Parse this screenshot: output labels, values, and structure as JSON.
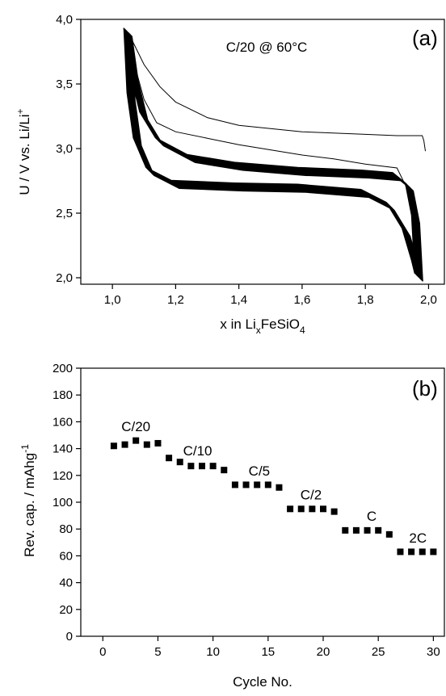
{
  "chart_data": [
    {
      "panel": "(a)",
      "type": "line",
      "annotation": "C/20 @ 60°C",
      "xlabel": "x in LixFeSiO4",
      "xlabel_parts": {
        "main": "x in Li",
        "sub1": "x",
        "mid": "FeSiO",
        "sub2": "4"
      },
      "ylabel": "U / V vs. Li/Li+",
      "ylabel_parts": {
        "main": "U / V vs. Li/Li",
        "sup": "+"
      },
      "xlim": [
        0.9,
        2.05
      ],
      "ylim": [
        1.95,
        4.0
      ],
      "xticks": [
        1.0,
        1.2,
        1.4,
        1.6,
        1.8,
        2.0
      ],
      "xtick_labels": [
        "1,0",
        "1,2",
        "1,4",
        "1,6",
        "1,8",
        "2,0"
      ],
      "yticks": [
        2.0,
        2.5,
        3.0,
        3.5,
        4.0
      ],
      "ytick_labels": [
        "2,0",
        "2,5",
        "3,0",
        "3,5",
        "4,0"
      ],
      "series": [
        {
          "curve": "first-charge",
          "x": [
            1.99,
            1.985,
            1.98,
            1.9,
            1.8,
            1.6,
            1.4,
            1.3,
            1.2,
            1.15,
            1.1,
            1.07,
            1.05
          ],
          "y": [
            2.98,
            3.06,
            3.1,
            3.1,
            3.11,
            3.13,
            3.18,
            3.24,
            3.36,
            3.48,
            3.65,
            3.8,
            3.9
          ]
        },
        {
          "curve": "first-discharge",
          "x": [
            1.05,
            1.07,
            1.1,
            1.14,
            1.2,
            1.3,
            1.4,
            1.5,
            1.6,
            1.7,
            1.8,
            1.9,
            1.95,
            1.97
          ],
          "y": [
            3.9,
            3.65,
            3.38,
            3.2,
            3.13,
            3.08,
            3.03,
            2.99,
            2.95,
            2.92,
            2.88,
            2.85,
            2.6,
            2.0
          ]
        },
        {
          "curve": "cycling-charge",
          "x": [
            1.97,
            1.96,
            1.94,
            1.9,
            1.8,
            1.6,
            1.4,
            1.25,
            1.15,
            1.1,
            1.07,
            1.05
          ],
          "y": [
            2.0,
            2.45,
            2.7,
            2.78,
            2.8,
            2.82,
            2.86,
            2.92,
            3.05,
            3.25,
            3.55,
            3.9
          ]
        },
        {
          "curve": "cycling-discharge",
          "x": [
            1.05,
            1.06,
            1.08,
            1.12,
            1.2,
            1.4,
            1.6,
            1.8,
            1.88,
            1.93,
            1.96,
            1.97
          ],
          "y": [
            3.9,
            3.4,
            3.05,
            2.82,
            2.72,
            2.7,
            2.69,
            2.65,
            2.55,
            2.35,
            2.1,
            2.0
          ]
        }
      ]
    },
    {
      "panel": "(b)",
      "type": "scatter",
      "xlabel": "Cycle No.",
      "ylabel": "Rev. cap. / mAhg-1",
      "ylabel_parts": {
        "main": "Rev. cap. / mAhg",
        "sup": "-1"
      },
      "xlim": [
        -2,
        31
      ],
      "ylim": [
        0,
        200
      ],
      "xticks": [
        0,
        5,
        10,
        15,
        20,
        25,
        30
      ],
      "xtick_labels": [
        "0",
        "5",
        "10",
        "15",
        "20",
        "25",
        "30"
      ],
      "yticks": [
        0,
        20,
        40,
        60,
        80,
        100,
        120,
        140,
        160,
        180,
        200
      ],
      "ytick_labels": [
        "0",
        "20",
        "40",
        "60",
        "80",
        "100",
        "120",
        "140",
        "160",
        "180",
        "200"
      ],
      "x": [
        1,
        2,
        3,
        4,
        5,
        6,
        7,
        8,
        9,
        10,
        11,
        12,
        13,
        14,
        15,
        16,
        17,
        18,
        19,
        20,
        21,
        22,
        23,
        24,
        25,
        26,
        27,
        28,
        29,
        30
      ],
      "y": [
        142,
        143,
        146,
        143,
        144,
        133,
        130,
        127,
        127,
        127,
        124,
        113,
        113,
        113,
        113,
        111,
        95,
        95,
        95,
        95,
        93,
        79,
        79,
        79,
        79,
        76,
        63,
        63,
        63,
        63
      ],
      "rate_labels": [
        {
          "text": "C/20",
          "x": 3,
          "y": 153
        },
        {
          "text": "C/10",
          "x": 8.6,
          "y": 135
        },
        {
          "text": "C/5",
          "x": 14.2,
          "y": 120
        },
        {
          "text": "C/2",
          "x": 18.9,
          "y": 102
        },
        {
          "text": "C",
          "x": 24.4,
          "y": 86
        },
        {
          "text": "2C",
          "x": 28.6,
          "y": 70
        }
      ]
    }
  ]
}
